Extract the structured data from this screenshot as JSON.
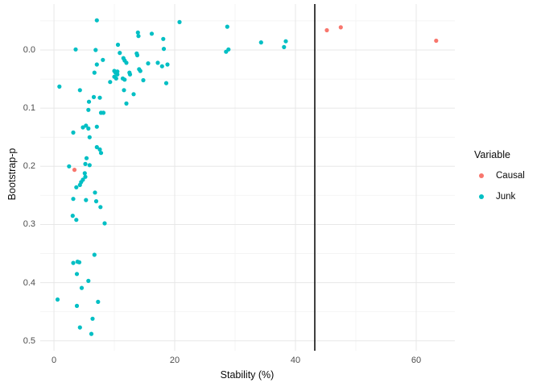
{
  "chart_data": {
    "type": "scatter",
    "title": "",
    "xlabel": "Stability (%)",
    "ylabel": "Bootstrap-p",
    "x_axis": {
      "ticks": [
        0,
        20,
        40,
        60
      ],
      "tick_labels": [
        "0",
        "20",
        "40",
        "60"
      ],
      "minor_ticks": [
        10,
        30,
        50
      ],
      "range": [
        -2.27,
        66.4
      ]
    },
    "y_axis": {
      "ticks": [
        0,
        0.1,
        0.2,
        0.3,
        0.4,
        0.5
      ],
      "tick_labels": [
        "0.0",
        "0.1",
        "0.2",
        "0.3",
        "0.4",
        "0.5"
      ],
      "minor_ticks": [
        -0.05,
        0.05,
        0.15,
        0.25,
        0.35,
        0.45
      ],
      "range": [
        -0.079,
        0.517
      ],
      "reversed": true
    },
    "vline": {
      "x": 43.2,
      "color": "#000000"
    },
    "grid": "on",
    "background": "#FFFFFF",
    "grid_major_color": "#E7E7E7",
    "grid_minor_color": "#F4F4F4",
    "legend": {
      "title": "Variable",
      "position": "right",
      "entries": [
        {
          "label": "Causal",
          "color": "#F8766D"
        },
        {
          "label": "Junk",
          "color": "#00BFC4"
        }
      ]
    },
    "series": [
      {
        "name": "Causal",
        "color": "#F8766D",
        "points": [
          [
            3.4,
            0.206
          ],
          [
            45.2,
            -0.034
          ],
          [
            47.5,
            -0.039
          ],
          [
            63.3,
            -0.016
          ]
        ]
      },
      {
        "name": "Junk",
        "color": "#00BFC4",
        "points": [
          [
            7.1,
            -0.051
          ],
          [
            20.8,
            -0.048
          ],
          [
            28.7,
            -0.04
          ],
          [
            13.9,
            -0.03
          ],
          [
            14.0,
            -0.024
          ],
          [
            16.2,
            -0.028
          ],
          [
            18.1,
            -0.019
          ],
          [
            34.3,
            -0.013
          ],
          [
            38.4,
            -0.015
          ],
          [
            38.1,
            -0.005
          ],
          [
            28.5,
            0.003
          ],
          [
            28.9,
            -0.001
          ],
          [
            3.6,
            -0.001
          ],
          [
            6.9,
            0.0
          ],
          [
            10.6,
            -0.009
          ],
          [
            18.2,
            -0.002
          ],
          [
            10.9,
            0.005
          ],
          [
            8.1,
            0.017
          ],
          [
            7.1,
            0.025
          ],
          [
            11.5,
            0.014
          ],
          [
            11.7,
            0.018
          ],
          [
            12.0,
            0.022
          ],
          [
            13.7,
            0.006
          ],
          [
            13.8,
            0.009
          ],
          [
            15.6,
            0.023
          ],
          [
            17.2,
            0.022
          ],
          [
            17.9,
            0.028
          ],
          [
            18.8,
            0.025
          ],
          [
            6.7,
            0.039
          ],
          [
            10.0,
            0.036
          ],
          [
            10.5,
            0.037
          ],
          [
            10.2,
            0.039
          ],
          [
            10.5,
            0.042
          ],
          [
            10.0,
            0.046
          ],
          [
            10.3,
            0.049
          ],
          [
            12.5,
            0.039
          ],
          [
            12.6,
            0.042
          ],
          [
            11.4,
            0.049
          ],
          [
            11.7,
            0.051
          ],
          [
            14.1,
            0.033
          ],
          [
            14.3,
            0.036
          ],
          [
            14.8,
            0.052
          ],
          [
            18.6,
            0.057
          ],
          [
            0.9,
            0.063
          ],
          [
            4.3,
            0.069
          ],
          [
            9.3,
            0.055
          ],
          [
            11.6,
            0.069
          ],
          [
            12.0,
            0.092
          ],
          [
            13.2,
            0.076
          ],
          [
            6.6,
            0.081
          ],
          [
            7.6,
            0.082
          ],
          [
            5.8,
            0.089
          ],
          [
            5.7,
            0.103
          ],
          [
            7.8,
            0.108
          ],
          [
            8.2,
            0.108
          ],
          [
            3.2,
            0.142
          ],
          [
            4.8,
            0.133
          ],
          [
            5.3,
            0.13
          ],
          [
            5.7,
            0.135
          ],
          [
            7.1,
            0.132
          ],
          [
            5.9,
            0.15
          ],
          [
            7.1,
            0.167
          ],
          [
            7.6,
            0.171
          ],
          [
            7.8,
            0.177
          ],
          [
            5.4,
            0.186
          ],
          [
            2.5,
            0.2
          ],
          [
            5.2,
            0.196
          ],
          [
            5.9,
            0.198
          ],
          [
            5.1,
            0.212
          ],
          [
            5.2,
            0.218
          ],
          [
            4.8,
            0.223
          ],
          [
            4.5,
            0.227
          ],
          [
            4.3,
            0.232
          ],
          [
            3.7,
            0.236
          ],
          [
            6.8,
            0.245
          ],
          [
            3.2,
            0.256
          ],
          [
            5.3,
            0.258
          ],
          [
            7.0,
            0.26
          ],
          [
            7.7,
            0.27
          ],
          [
            3.1,
            0.285
          ],
          [
            3.7,
            0.292
          ],
          [
            8.4,
            0.298
          ],
          [
            6.7,
            0.352
          ],
          [
            3.2,
            0.366
          ],
          [
            3.9,
            0.364
          ],
          [
            4.2,
            0.365
          ],
          [
            3.8,
            0.385
          ],
          [
            5.7,
            0.397
          ],
          [
            4.6,
            0.409
          ],
          [
            0.6,
            0.429
          ],
          [
            7.3,
            0.433
          ],
          [
            3.8,
            0.44
          ],
          [
            6.4,
            0.462
          ],
          [
            4.3,
            0.477
          ],
          [
            6.2,
            0.488
          ]
        ]
      }
    ]
  }
}
